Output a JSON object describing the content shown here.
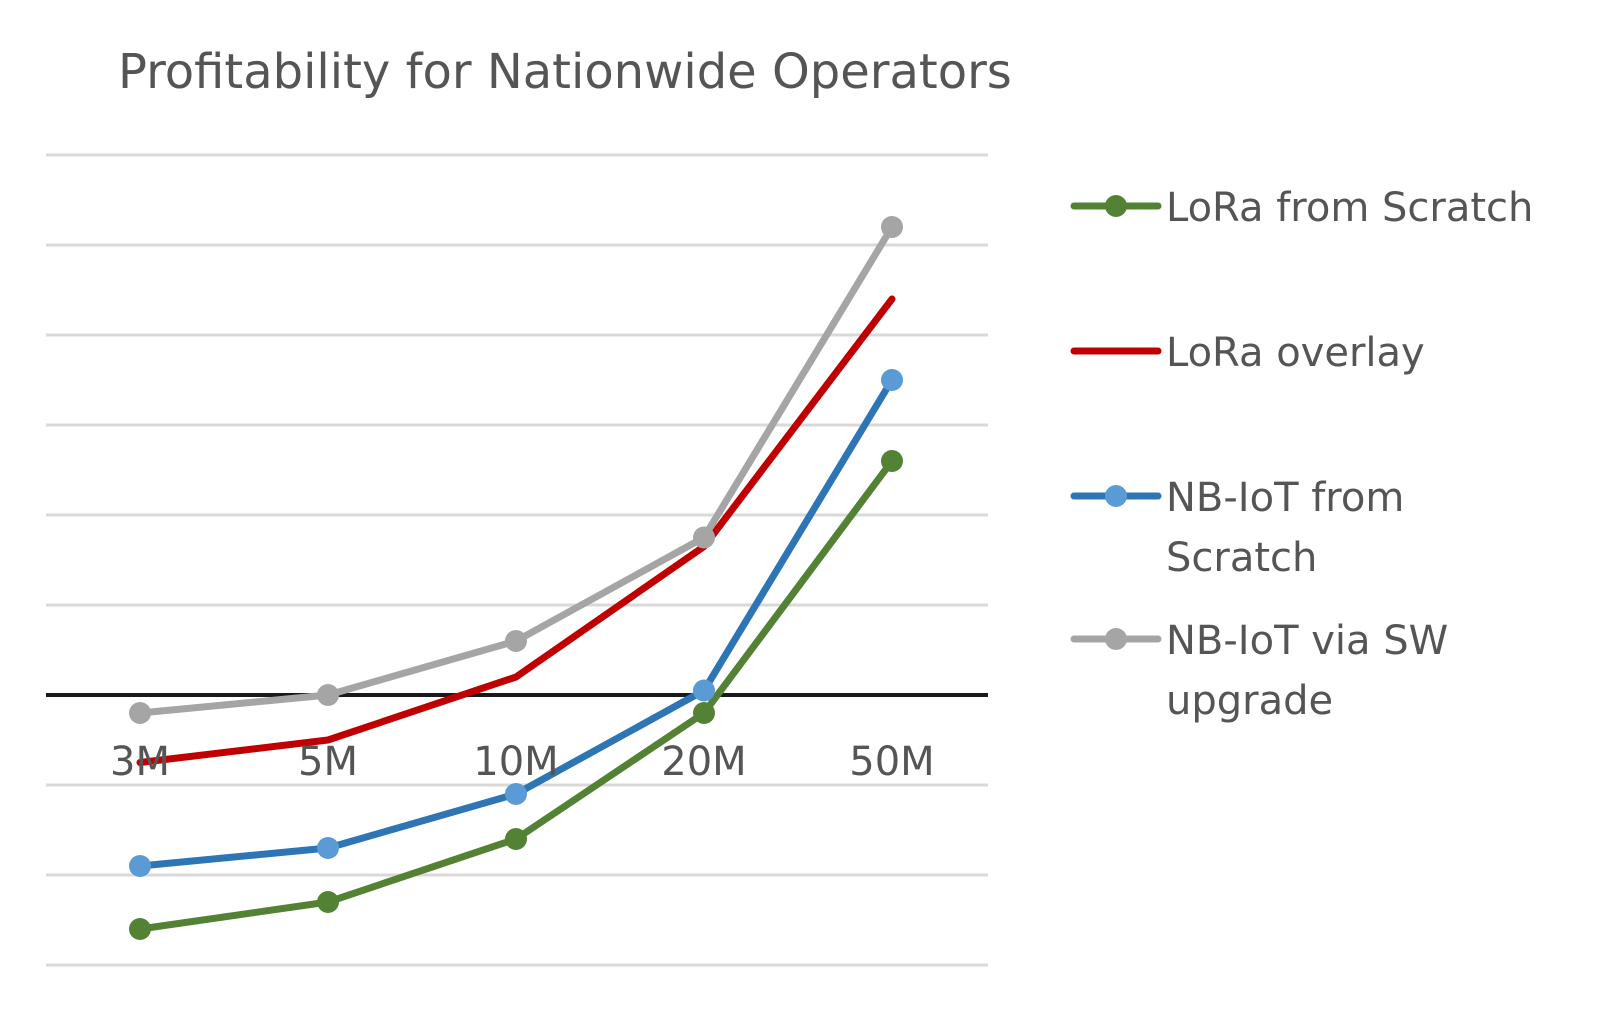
{
  "chart_data": {
    "type": "line",
    "title": "Profitability for Nationwide Operators",
    "xlabel": "",
    "ylabel": "",
    "categories": [
      "3M",
      "5M",
      "10M",
      "20M",
      "50M"
    ],
    "ylim": [
      -3,
      6
    ],
    "gridlines": [
      -3,
      -2,
      -1,
      0,
      1,
      2,
      3,
      4,
      5,
      6
    ],
    "y_tick_labels": false,
    "grid": true,
    "legend": "right",
    "series": [
      {
        "name": "LoRa from Scratch",
        "values": [
          -2.6,
          -2.3,
          -1.6,
          -0.2,
          2.6
        ],
        "color": "#548235",
        "markers": true
      },
      {
        "name": "LoRa overlay",
        "values": [
          -0.75,
          -0.5,
          0.2,
          1.65,
          4.4
        ],
        "color": "#c00000",
        "markers": false
      },
      {
        "name": "NB-IoT from Scratch",
        "values": [
          -1.9,
          -1.7,
          -1.1,
          0.05,
          3.5
        ],
        "color": "#2e75b6",
        "marker_color": "#5b9bd5",
        "markers": true
      },
      {
        "name": "NB-IoT via SW upgrade",
        "values": [
          -0.2,
          0.0,
          0.6,
          1.75,
          5.2
        ],
        "color": "#a5a5a5",
        "markers": true
      }
    ],
    "legend_lines": [
      [
        "LoRa from Scratch"
      ],
      [
        "LoRa overlay"
      ],
      [
        "NB-IoT from",
        "Scratch"
      ],
      [
        "NB-IoT via SW",
        "upgrade"
      ]
    ]
  }
}
